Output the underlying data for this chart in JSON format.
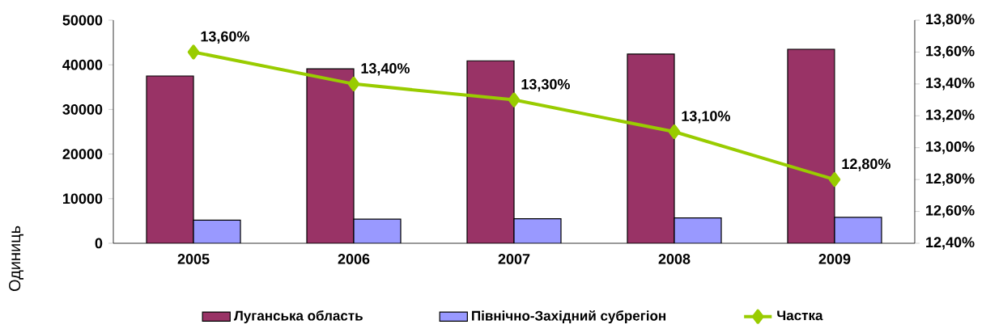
{
  "chart_data": {
    "type": "bar",
    "categories": [
      "2005",
      "2006",
      "2007",
      "2008",
      "2009"
    ],
    "ylabel": "Одиниць",
    "series": [
      {
        "name": "Луганська область",
        "color": "#993366",
        "values": [
          37500,
          39100,
          40900,
          42400,
          43500
        ]
      },
      {
        "name": "Північно-Західний субрегіон",
        "color": "#9999ff",
        "values": [
          5200,
          5400,
          5500,
          5700,
          5800
        ]
      },
      {
        "name": "Частка",
        "type": "line",
        "axis": "y2",
        "color": "#99cc00",
        "marker": "diamond",
        "values": [
          13.6,
          13.4,
          13.3,
          13.1,
          12.8
        ],
        "value_labels": [
          "13,60%",
          "13,40%",
          "13,30%",
          "13,10%",
          "12,80%"
        ]
      }
    ],
    "ylim": [
      0,
      50000
    ],
    "yticks": [
      0,
      10000,
      20000,
      30000,
      40000,
      50000
    ],
    "y2lim": [
      12.4,
      13.8
    ],
    "y2ticks": [
      {
        "value": 12.4,
        "label": "12,40%"
      },
      {
        "value": 12.6,
        "label": "12,60%"
      },
      {
        "value": 12.8,
        "label": "12,80%"
      },
      {
        "value": 13.0,
        "label": "13,00%"
      },
      {
        "value": 13.2,
        "label": "13,20%"
      },
      {
        "value": 13.4,
        "label": "13,40%"
      },
      {
        "value": 13.6,
        "label": "13,60%"
      },
      {
        "value": 13.8,
        "label": "13,80%"
      }
    ],
    "legend": "bottom"
  }
}
